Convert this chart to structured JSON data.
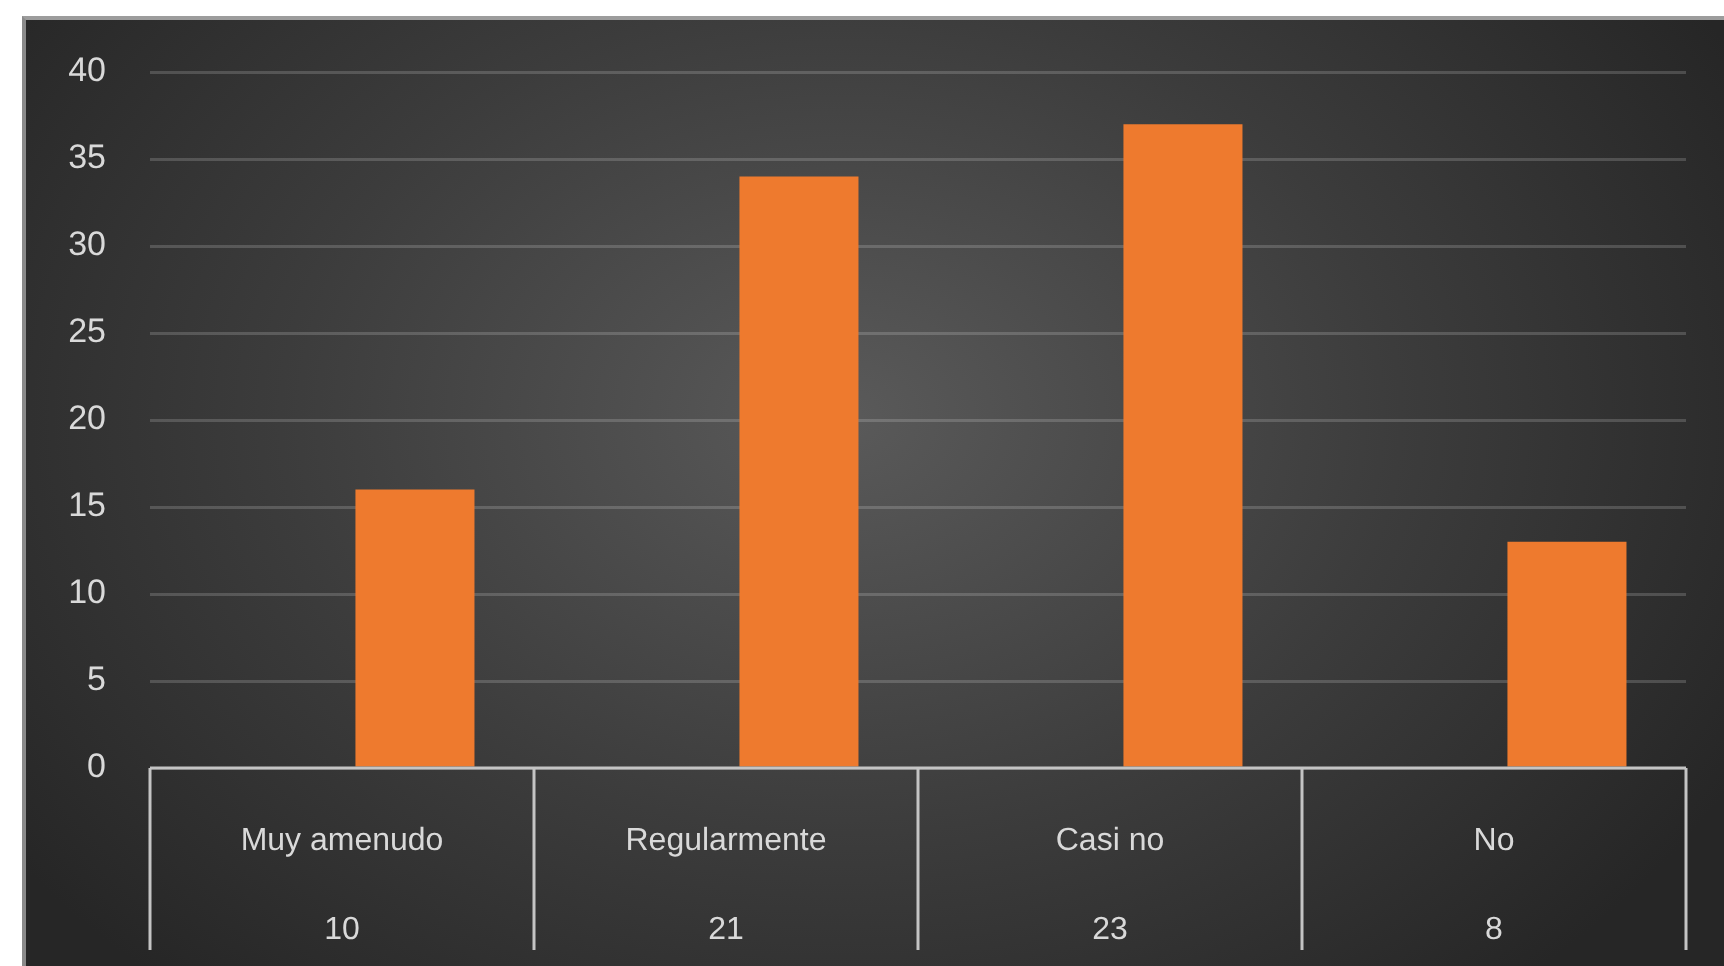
{
  "chart_data": {
    "type": "bar",
    "categories": [
      "Muy amenudo",
      "Regularmente",
      "Casi no",
      "No"
    ],
    "values": [
      16,
      34,
      37,
      13
    ],
    "color": "#ee7a2e",
    "ylim": [
      0,
      40
    ],
    "yticks": [
      0,
      5,
      10,
      15,
      20,
      25,
      30,
      35,
      40
    ],
    "grid": "y",
    "annotations": [
      "10",
      "21",
      "23",
      "8"
    ]
  }
}
